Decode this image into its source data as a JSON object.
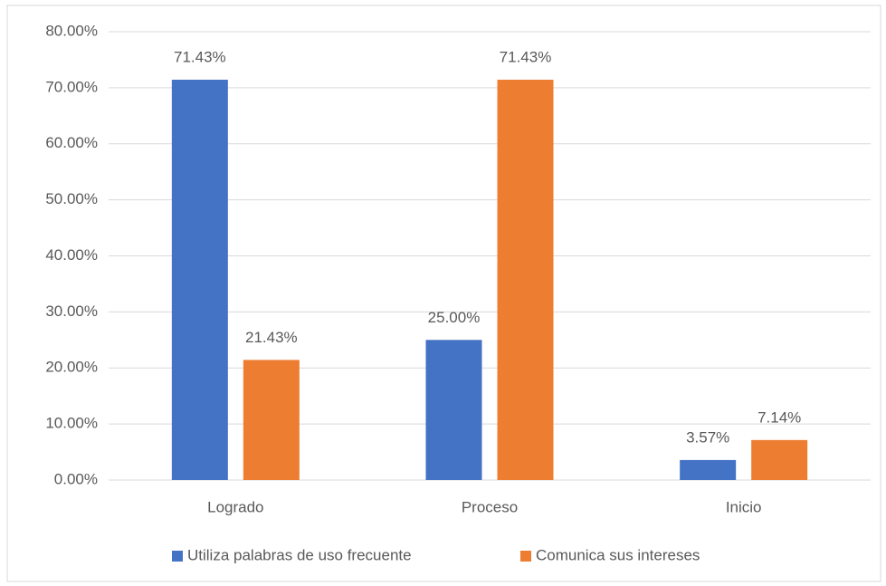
{
  "chart_data": {
    "type": "bar",
    "categories": [
      "Logrado",
      "Proceso",
      "Inicio"
    ],
    "series": [
      {
        "name": "Utiliza palabras de uso frecuente",
        "color": "#4472c4",
        "values": [
          71.43,
          25.0,
          3.57
        ],
        "value_labels": [
          "71.43%",
          "25.00%",
          "3.57%"
        ]
      },
      {
        "name": "Comunica sus intereses",
        "color": "#ed7d31",
        "values": [
          21.43,
          71.43,
          7.14
        ],
        "value_labels": [
          "21.43%",
          "71.43%",
          "7.14%"
        ]
      }
    ],
    "ylim": [
      0,
      80
    ],
    "yticks": [
      {
        "value": 0,
        "label": "0.00%"
      },
      {
        "value": 10,
        "label": "10.00%"
      },
      {
        "value": 20,
        "label": "20.00%"
      },
      {
        "value": 30,
        "label": "30.00%"
      },
      {
        "value": 40,
        "label": "40.00%"
      },
      {
        "value": 50,
        "label": "50.00%"
      },
      {
        "value": 60,
        "label": "60.00%"
      },
      {
        "value": 70,
        "label": "70.00%"
      },
      {
        "value": 80,
        "label": "80.00%"
      }
    ],
    "grid": true,
    "legend": "bottom"
  }
}
